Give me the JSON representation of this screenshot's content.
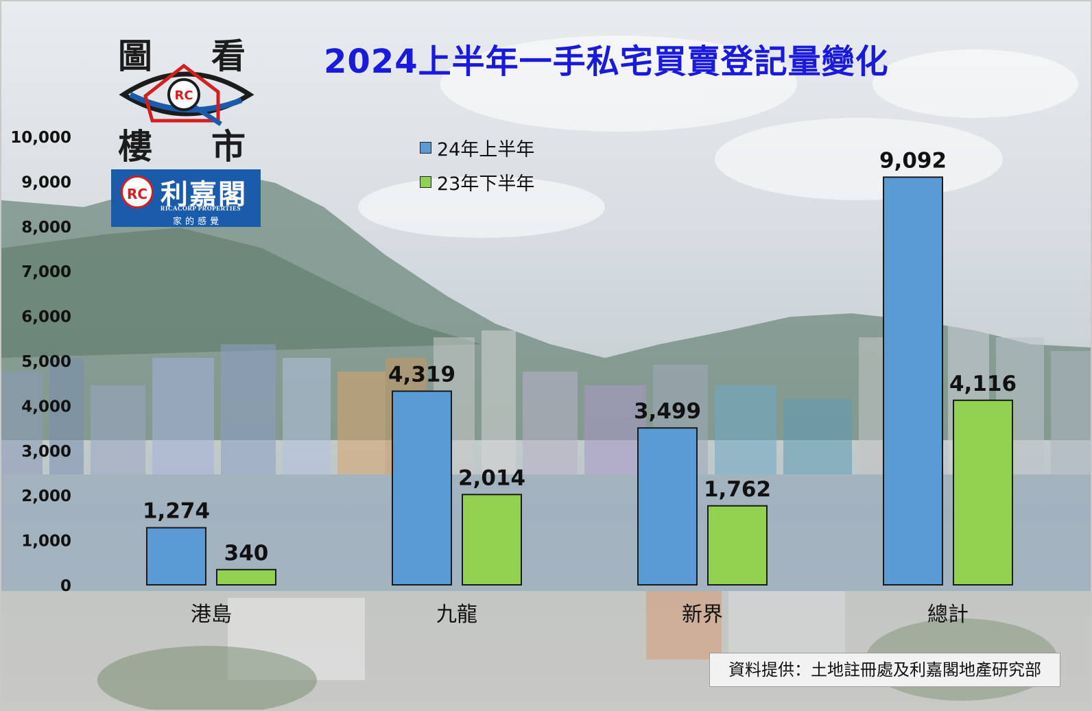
{
  "logo": {
    "char_tl": "圖",
    "char_tr": "看",
    "char_bl": "樓",
    "char_br": "市",
    "badge_rc": "RC",
    "brand_cn": "利嘉閣",
    "brand_en": "RICACORP PROPERTIES",
    "brand_tagline": "家的感覺"
  },
  "source_note": "資料提供：土地註冊處及利嘉閣地產研究部",
  "colors": {
    "title": "#1a1adc",
    "series_h1_2024": "#5b9bd5",
    "series_h2_2023": "#92d050",
    "logo_blue": "#1a5bab",
    "logo_red": "#d51e1e"
  },
  "chart_data": {
    "type": "bar",
    "title": "2024上半年一手私宅買賣登記量變化",
    "xlabel": "",
    "ylabel": "",
    "categories": [
      "港島",
      "九龍",
      "新界",
      "總計"
    ],
    "series": [
      {
        "name": "24年上半年",
        "values": [
          1274,
          4319,
          3499,
          9092
        ]
      },
      {
        "name": "23年下半年",
        "values": [
          340,
          2014,
          1762,
          4116
        ]
      }
    ],
    "value_labels": [
      [
        "1,274",
        "4,319",
        "3,499",
        "9,092"
      ],
      [
        "340",
        "2,014",
        "1,762",
        "4,116"
      ]
    ],
    "ylim": [
      0,
      10000
    ],
    "yticks": [
      "0",
      "1,000",
      "2,000",
      "3,000",
      "4,000",
      "5,000",
      "6,000",
      "7,000",
      "8,000",
      "9,000",
      "10,000"
    ],
    "grid": false,
    "legend_position": "top-left"
  }
}
